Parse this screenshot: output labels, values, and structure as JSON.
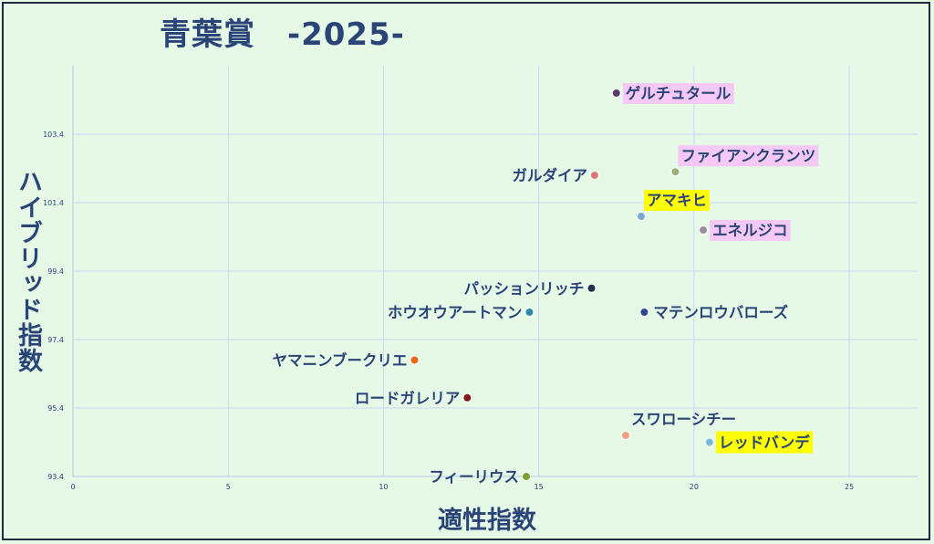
{
  "title": "青葉賞　-2025-",
  "chart_data": {
    "type": "scatter",
    "title": "青葉賞　-2025-",
    "xlabel": "適性指数",
    "ylabel": "ハイブリッド指数",
    "xlim": [
      0,
      27.2
    ],
    "ylim": [
      93.4,
      105.4
    ],
    "xticks": [
      0,
      5,
      10,
      15,
      20,
      25
    ],
    "yticks": [
      93.4,
      95.4,
      97.4,
      99.4,
      101.4,
      103.4
    ],
    "grid": true,
    "points": [
      {
        "name": "ゲルチュタール",
        "x": 17.5,
        "y": 104.6,
        "color": "#5a3a6a",
        "label_bg": "#f5c8f5",
        "label_side": "right"
      },
      {
        "name": "ファイアンクランツ",
        "x": 19.4,
        "y": 102.3,
        "color": "#9bb07a",
        "label_bg": "#f5c8f5",
        "label_side": "right-up"
      },
      {
        "name": "ガルダイア",
        "x": 16.8,
        "y": 102.2,
        "color": "#d97a7a",
        "label_bg": "",
        "label_side": "left"
      },
      {
        "name": "アマキヒ",
        "x": 18.3,
        "y": 101.0,
        "color": "#7aa8d0",
        "label_bg": "#ffff00",
        "label_side": "right-up"
      },
      {
        "name": "エネルジコ",
        "x": 20.3,
        "y": 100.6,
        "color": "#a08aa0",
        "label_bg": "#f5c8f5",
        "label_side": "right"
      },
      {
        "name": "パッションリッチ",
        "x": 16.7,
        "y": 98.9,
        "color": "#1f3050",
        "label_bg": "",
        "label_side": "left"
      },
      {
        "name": "ホウオウアートマン",
        "x": 14.7,
        "y": 98.2,
        "color": "#2a8aa8",
        "label_bg": "",
        "label_side": "left"
      },
      {
        "name": "マテンロウバローズ",
        "x": 18.4,
        "y": 98.2,
        "color": "#2a4a8a",
        "label_bg": "",
        "label_side": "right"
      },
      {
        "name": "ヤマニンブークリエ",
        "x": 11.0,
        "y": 96.8,
        "color": "#e86a1a",
        "label_bg": "",
        "label_side": "left"
      },
      {
        "name": "ロードガレリア",
        "x": 12.7,
        "y": 95.7,
        "color": "#8a1a1a",
        "label_bg": "",
        "label_side": "left"
      },
      {
        "name": "スワローシチー",
        "x": 17.8,
        "y": 94.6,
        "color": "#f0a080",
        "label_bg": "",
        "label_side": "right-up"
      },
      {
        "name": "レッドバンデ",
        "x": 20.5,
        "y": 94.4,
        "color": "#7ab8d8",
        "label_bg": "#ffff00",
        "label_side": "right"
      },
      {
        "name": "フィーリウス",
        "x": 14.6,
        "y": 93.4,
        "color": "#7aa030",
        "label_bg": "",
        "label_side": "left"
      }
    ]
  }
}
